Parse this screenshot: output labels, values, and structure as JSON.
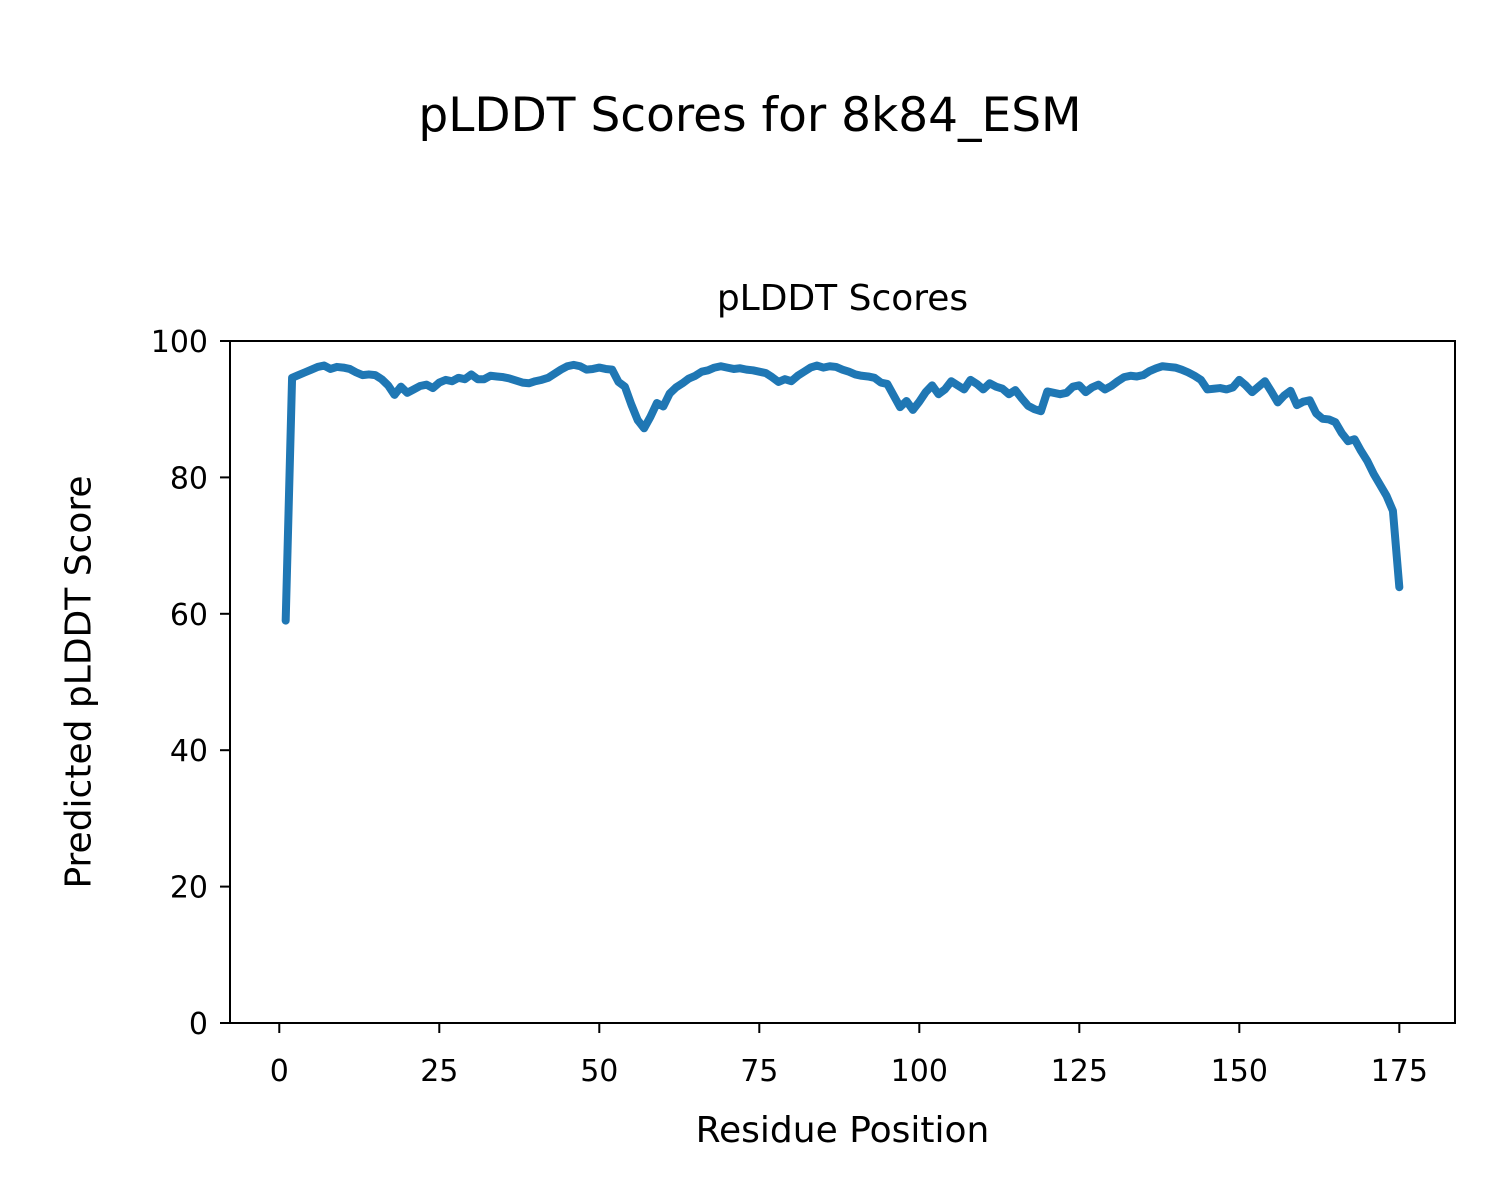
{
  "figure": {
    "suptitle": "pLDDT Scores for 8k84_ESM",
    "axes_title": "pLDDT Scores",
    "xlabel": "Residue Position",
    "ylabel": "Predicted pLDDT Score"
  },
  "colors": {
    "line": "#1f77b4",
    "text": "#000000",
    "spine": "#000000",
    "background": "#ffffff"
  },
  "chart_data": {
    "type": "line",
    "title": "pLDDT Scores",
    "suptitle": "pLDDT Scores for 8k84_ESM",
    "xlabel": "Residue Position",
    "ylabel": "Predicted pLDDT Score",
    "series": [
      {
        "name": "pLDDT",
        "color": "#1f77b4",
        "x_start": 1,
        "x_step": 1,
        "values": [
          59.0,
          94.6,
          95.0,
          95.4,
          95.8,
          96.2,
          96.4,
          95.9,
          96.2,
          96.1,
          95.9,
          95.4,
          95.0,
          95.1,
          95.0,
          94.4,
          93.5,
          92.1,
          93.3,
          92.4,
          92.9,
          93.4,
          93.6,
          93.1,
          93.9,
          94.3,
          94.1,
          94.6,
          94.4,
          95.1,
          94.4,
          94.4,
          94.9,
          94.8,
          94.7,
          94.5,
          94.2,
          93.9,
          93.8,
          94.1,
          94.3,
          94.6,
          95.2,
          95.8,
          96.3,
          96.5,
          96.3,
          95.8,
          95.9,
          96.1,
          95.9,
          95.8,
          94.0,
          93.3,
          90.7,
          88.4,
          87.2,
          88.9,
          90.9,
          90.4,
          92.3,
          93.2,
          93.8,
          94.5,
          94.9,
          95.5,
          95.7,
          96.1,
          96.3,
          96.1,
          95.9,
          96.0,
          95.8,
          95.7,
          95.5,
          95.3,
          94.7,
          94.0,
          94.4,
          94.1,
          94.9,
          95.5,
          96.1,
          96.4,
          96.1,
          96.3,
          96.2,
          95.8,
          95.5,
          95.1,
          94.9,
          94.8,
          94.6,
          93.9,
          93.7,
          92.0,
          90.3,
          91.2,
          89.9,
          91.1,
          92.5,
          93.5,
          92.2,
          92.9,
          94.1,
          93.5,
          92.9,
          94.3,
          93.7,
          92.9,
          93.8,
          93.3,
          93.0,
          92.2,
          92.8,
          91.6,
          90.5,
          90.0,
          89.7,
          92.6,
          92.4,
          92.2,
          92.4,
          93.3,
          93.5,
          92.5,
          93.2,
          93.6,
          92.9,
          93.4,
          94.1,
          94.7,
          94.9,
          94.8,
          95.0,
          95.6,
          96.0,
          96.3,
          96.2,
          96.1,
          95.8,
          95.4,
          94.9,
          94.3,
          92.9,
          93.0,
          93.1,
          92.9,
          93.2,
          94.3,
          93.5,
          92.5,
          93.3,
          94.1,
          92.6,
          91.0,
          92.0,
          92.7,
          90.6,
          91.1,
          91.3,
          89.4,
          88.6,
          88.5,
          88.1,
          86.5,
          85.3,
          85.6,
          83.9,
          82.4,
          80.5,
          78.9,
          77.3,
          75.1,
          63.9
        ]
      }
    ],
    "xlim": [
      -7.7,
      183.7
    ],
    "ylim": [
      0,
      100
    ],
    "x_ticks": [
      0,
      25,
      50,
      75,
      100,
      125,
      150,
      175
    ],
    "y_ticks": [
      0,
      20,
      40,
      60,
      80,
      100
    ],
    "grid": false,
    "legend": null
  },
  "style": {
    "line_width": 8,
    "spine_width": 2,
    "tick_length": 10,
    "tick_width": 2,
    "tick_font_size": 30
  }
}
